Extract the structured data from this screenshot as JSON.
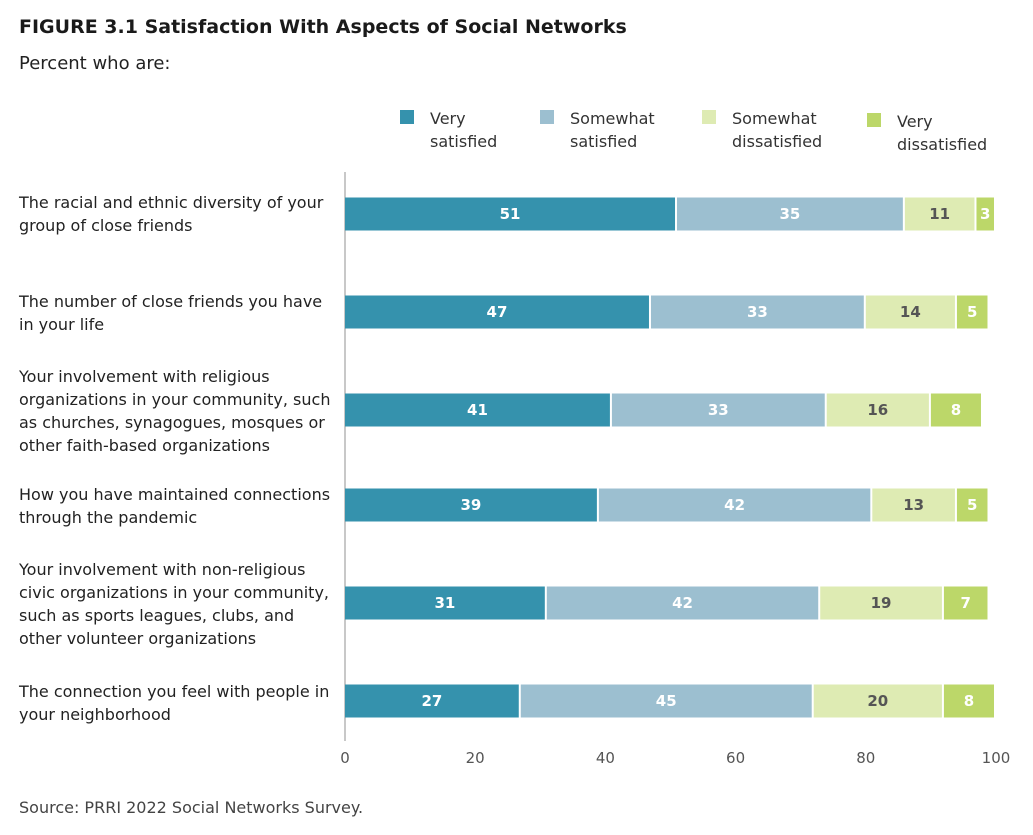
{
  "title": "FIGURE 3.1  Satisfaction With Aspects of Social Networks",
  "subtitle": "Percent who are:",
  "source": "Source: PRRI 2022 Social Networks Survey.",
  "chart_data": {
    "type": "bar",
    "orientation": "horizontal",
    "stacked": true,
    "categories": [
      "The racial and ethnic diversity of your\ngroup of close friends",
      "The number of close friends you have\nin your life",
      "Your involvement with religious\norganizations in your community, such\nas churches, synagogues, mosques or\nother faith-based organizations",
      "How you have maintained connections\nthrough the pandemic",
      "Your involvement with non-religious\ncivic organizations in your community,\nsuch as sports leagues, clubs, and\nother volunteer organizations",
      "The connection you feel with people in\nyour neighborhood"
    ],
    "series": [
      {
        "name": "Very\nsatisfied",
        "color": "#3592ad",
        "label_color": "#ffffff",
        "values": [
          51,
          47,
          41,
          39,
          31,
          27
        ]
      },
      {
        "name": "Somewhat\nsatisfied",
        "color": "#9cbfd0",
        "label_color": "#ffffff",
        "values": [
          35,
          33,
          33,
          42,
          42,
          45
        ]
      },
      {
        "name": "Somewhat\ndissatisfied",
        "color": "#deebb3",
        "label_color": "#555555",
        "values": [
          11,
          14,
          16,
          13,
          19,
          20
        ]
      },
      {
        "name": "Very\ndissatisfied",
        "color": "#bcd769",
        "label_color": "#ffffff",
        "values": [
          3,
          5,
          8,
          5,
          7,
          8
        ]
      }
    ],
    "xlim": [
      0,
      100
    ],
    "xticks": [
      0,
      20,
      40,
      60,
      80,
      100
    ],
    "grid": false,
    "legend_position": "top-right"
  }
}
